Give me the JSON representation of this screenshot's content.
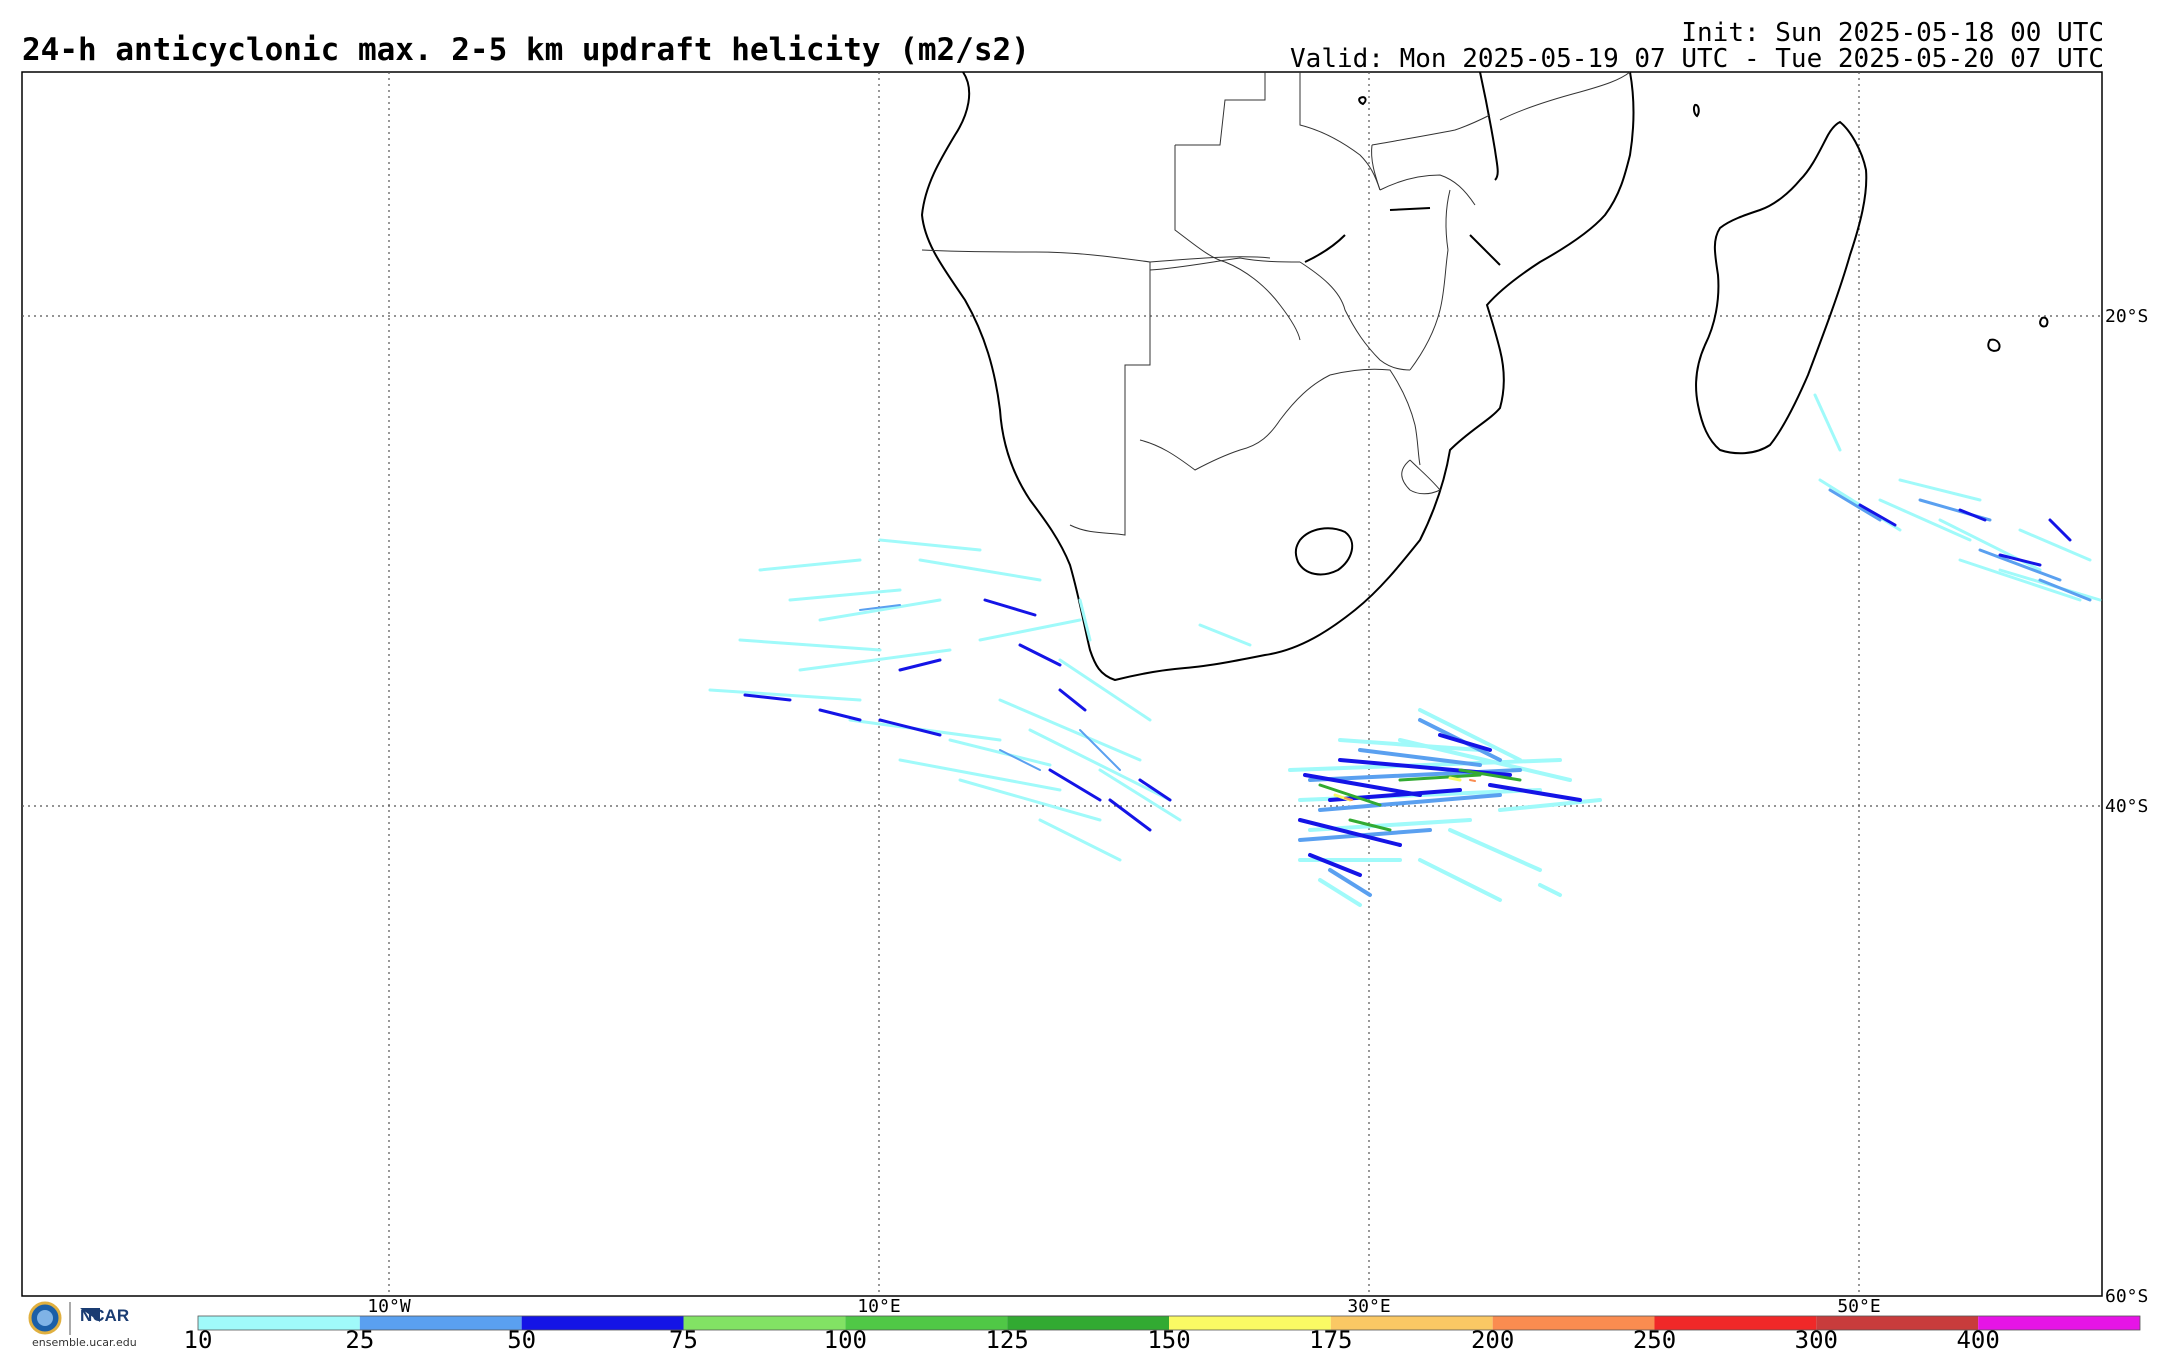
{
  "header": {
    "title": "24-h anticyclonic max. 2-5 km updraft helicity (m2/s2)",
    "init": "Init: Sun 2025-05-18 00 UTC",
    "valid": "Valid: Mon 2025-05-19 07 UTC - Tue 2025-05-20 07 UTC"
  },
  "map": {
    "lat_labels": [
      "20°S",
      "40°S",
      "60°S"
    ],
    "lon_labels": [
      "10°W",
      "10°E",
      "30°E",
      "50°E"
    ],
    "land_color": "#ffffff",
    "coast_color": "#000000"
  },
  "colorbar": {
    "ticks": [
      "10",
      "25",
      "50",
      "75",
      "100",
      "125",
      "150",
      "175",
      "200",
      "250",
      "300",
      "400"
    ],
    "colors": [
      "#a0fafa",
      "#5aa0f0",
      "#1414e6",
      "#82e264",
      "#50c846",
      "#32aa32",
      "#fafa64",
      "#fac864",
      "#fa8c50",
      "#f02828",
      "#c83c3c",
      "#e614e6"
    ]
  },
  "logos": {
    "org": "NCAR",
    "site": "ensemble.ucar.edu"
  }
}
